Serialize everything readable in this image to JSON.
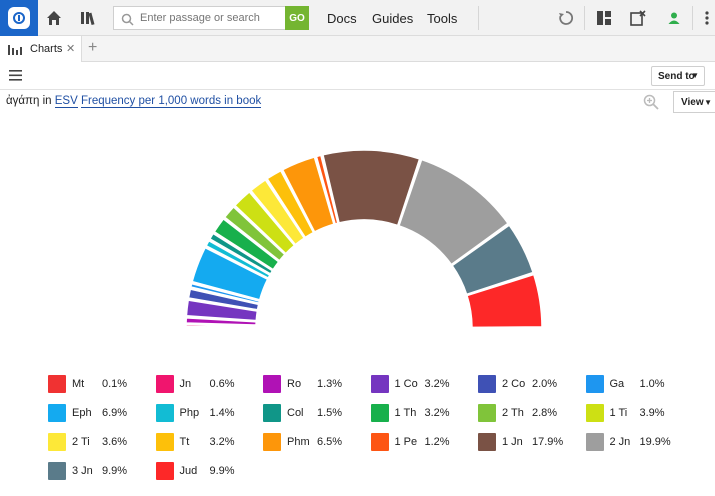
{
  "topbar": {
    "search_placeholder": "Enter passage or search",
    "go_label": "GO",
    "nav": [
      "Docs",
      "Guides",
      "Tools"
    ]
  },
  "tabs": [
    {
      "label": "Charts"
    }
  ],
  "toolbar": {
    "send_to_label": "Send to"
  },
  "query": {
    "term": "ἀγάπη",
    "in_label": "in",
    "version": "ESV",
    "metric": "Frequency per 1,000 words in book",
    "view_label": "View"
  },
  "colors": {
    "brand": "#1b66c9",
    "go": "#74b531",
    "link": "#1f4fa3"
  },
  "chart_data": {
    "type": "pie",
    "subtype": "semi-donut",
    "unit": "%",
    "series": [
      {
        "name": "Mt",
        "value": 0.1,
        "label": "0.1%",
        "color": "#f03232"
      },
      {
        "name": "Jn",
        "value": 0.6,
        "label": "0.6%",
        "color": "#f0156e"
      },
      {
        "name": "Ro",
        "value": 1.3,
        "label": "1.3%",
        "color": "#b012b5"
      },
      {
        "name": "1 Co",
        "value": 3.2,
        "label": "3.2%",
        "color": "#7535c0"
      },
      {
        "name": "2 Co",
        "value": 2.0,
        "label": "2.0%",
        "color": "#3f51b5"
      },
      {
        "name": "Ga",
        "value": 1.0,
        "label": "1.0%",
        "color": "#1e96f0"
      },
      {
        "name": "Eph",
        "value": 6.9,
        "label": "6.9%",
        "color": "#14aaf0"
      },
      {
        "name": "Php",
        "value": 1.4,
        "label": "1.4%",
        "color": "#12bcd4"
      },
      {
        "name": "Col",
        "value": 1.5,
        "label": "1.5%",
        "color": "#109688"
      },
      {
        "name": "1 Th",
        "value": 3.2,
        "label": "3.2%",
        "color": "#18b04c"
      },
      {
        "name": "2 Th",
        "value": 2.8,
        "label": "2.8%",
        "color": "#80c43a"
      },
      {
        "name": "1 Ti",
        "value": 3.9,
        "label": "3.9%",
        "color": "#cde014"
      },
      {
        "name": "2 Ti",
        "value": 3.6,
        "label": "3.6%",
        "color": "#fde838"
      },
      {
        "name": "Tt",
        "value": 3.2,
        "label": "3.2%",
        "color": "#fdc00a"
      },
      {
        "name": "Phm",
        "value": 6.5,
        "label": "6.5%",
        "color": "#fd960a"
      },
      {
        "name": "1 Pe",
        "value": 1.2,
        "label": "1.2%",
        "color": "#fd5514"
      },
      {
        "name": "1 Jn",
        "value": 17.9,
        "label": "17.9%",
        "color": "#7a5245"
      },
      {
        "name": "2 Jn",
        "value": 19.9,
        "label": "19.9%",
        "color": "#9e9e9e"
      },
      {
        "name": "3 Jn",
        "value": 9.9,
        "label": "9.9%",
        "color": "#5a7b8a"
      },
      {
        "name": "Jud",
        "value": 9.9,
        "label": "9.9%",
        "color": "#fd2828"
      }
    ],
    "legend_position": "bottom"
  }
}
